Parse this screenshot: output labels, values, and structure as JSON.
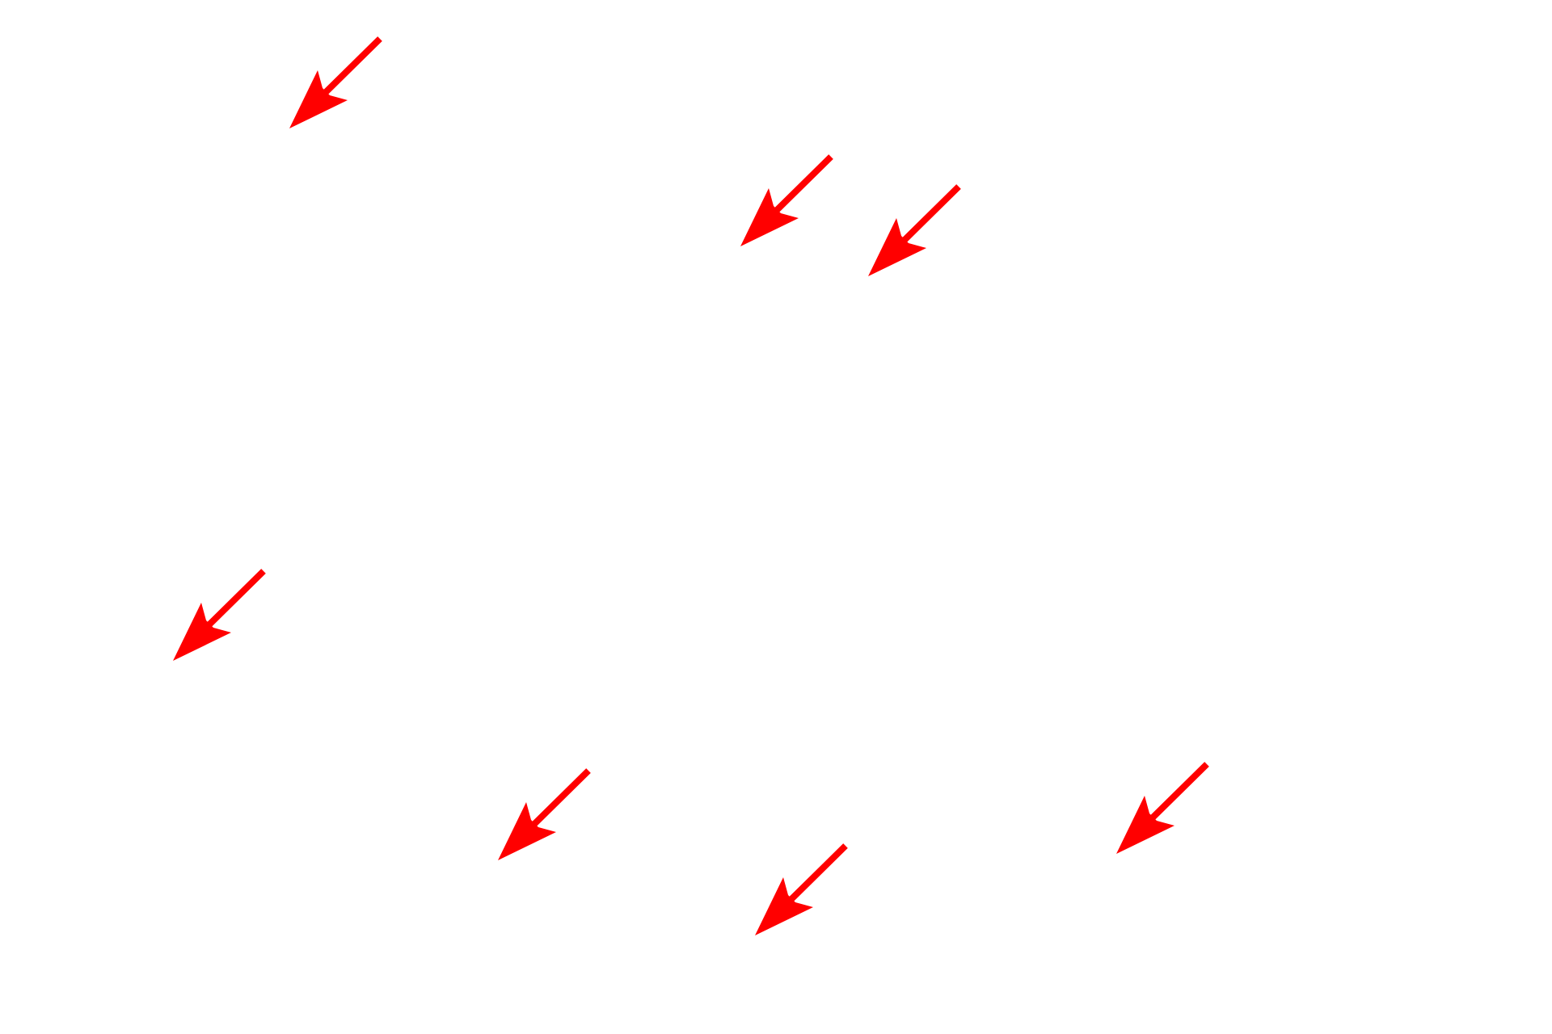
{
  "background_color": "#ffffff",
  "arrow_color": "#ff0000",
  "arrow_icon": "arrow-down-left-icon",
  "arrow_count": 7
}
